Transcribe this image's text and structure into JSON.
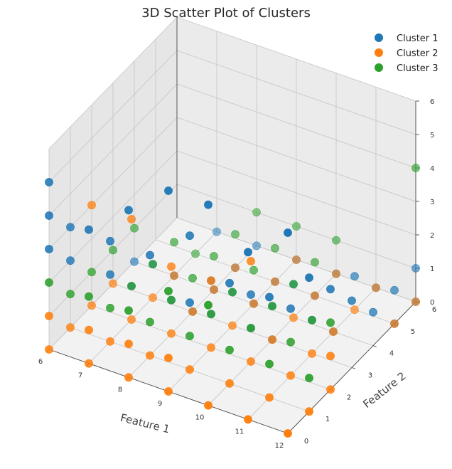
{
  "chart_data": {
    "type": "scatter",
    "projection": "3d",
    "title": "3D Scatter Plot of Clusters",
    "xlabel": "Feature 1",
    "ylabel": "Feature 2",
    "zlabel": "",
    "xlim": [
      6,
      12
    ],
    "ylim": [
      0,
      6
    ],
    "zlim": [
      0,
      6
    ],
    "x_ticks": [
      6,
      7,
      8,
      9,
      10,
      11,
      12
    ],
    "y_ticks": [
      0,
      1,
      2,
      3,
      4,
      5,
      6
    ],
    "z_ticks": [
      0,
      1,
      2,
      3,
      4,
      5,
      6
    ],
    "grid": true,
    "legend_position": "top-right",
    "series": [
      {
        "name": "Cluster 1",
        "color": "#1f77b4",
        "points": [
          [
            6,
            0,
            3
          ],
          [
            6,
            0,
            4
          ],
          [
            6,
            0,
            5
          ],
          [
            7,
            0,
            4
          ],
          [
            8,
            0,
            5
          ],
          [
            9,
            0,
            6
          ],
          [
            10,
            0,
            6
          ],
          [
            11,
            0,
            5
          ],
          [
            12,
            0,
            6
          ],
          [
            6,
            1,
            2
          ],
          [
            6,
            1,
            3
          ],
          [
            7,
            1,
            2
          ],
          [
            7,
            1,
            3
          ],
          [
            8,
            1,
            3
          ],
          [
            9,
            1,
            2
          ],
          [
            9,
            1,
            4
          ],
          [
            10,
            1,
            3
          ],
          [
            11,
            1,
            3
          ],
          [
            12,
            1,
            4
          ],
          [
            7,
            2,
            1
          ],
          [
            8,
            2,
            1
          ],
          [
            9,
            2,
            1
          ],
          [
            9,
            2,
            2
          ],
          [
            10,
            2,
            1
          ],
          [
            10,
            2,
            2
          ],
          [
            11,
            2,
            2
          ],
          [
            12,
            2,
            3
          ],
          [
            7,
            3,
            1
          ],
          [
            8,
            3,
            0
          ],
          [
            9,
            3,
            1
          ],
          [
            10,
            3,
            1
          ],
          [
            10,
            3,
            0
          ],
          [
            11,
            3,
            1
          ],
          [
            12,
            3,
            2
          ],
          [
            6,
            4,
            0
          ],
          [
            7,
            4,
            0
          ],
          [
            8,
            4,
            0
          ],
          [
            9,
            4,
            0
          ],
          [
            10,
            4,
            1
          ],
          [
            11,
            4,
            0
          ],
          [
            12,
            4,
            1
          ],
          [
            8,
            5,
            0
          ],
          [
            9,
            5,
            0
          ],
          [
            10,
            5,
            0
          ],
          [
            11,
            5,
            1
          ],
          [
            12,
            5,
            1
          ],
          [
            12,
            5,
            0
          ],
          [
            7,
            6,
            0
          ],
          [
            8,
            6,
            0
          ],
          [
            9,
            6,
            0
          ],
          [
            10,
            6,
            0
          ],
          [
            11,
            6,
            0
          ],
          [
            12,
            6,
            1
          ],
          [
            12,
            6,
            0
          ]
        ]
      },
      {
        "name": "Cluster 2",
        "color": "#ff7f0e",
        "points": [
          [
            6,
            0,
            0
          ],
          [
            6,
            0,
            1
          ],
          [
            7,
            0,
            0
          ],
          [
            7,
            0,
            1
          ],
          [
            8,
            0,
            0
          ],
          [
            8,
            0,
            1
          ],
          [
            9,
            0,
            0
          ],
          [
            9,
            0,
            1
          ],
          [
            10,
            0,
            0
          ],
          [
            11,
            0,
            0
          ],
          [
            12,
            0,
            0
          ],
          [
            6,
            1,
            0
          ],
          [
            7,
            1,
            0
          ],
          [
            8,
            1,
            0
          ],
          [
            9,
            1,
            0
          ],
          [
            10,
            1,
            0
          ],
          [
            11,
            1,
            0
          ],
          [
            12,
            1,
            0
          ],
          [
            6,
            2,
            0
          ],
          [
            7,
            2,
            0
          ],
          [
            8,
            2,
            0
          ],
          [
            9,
            2,
            0
          ],
          [
            10,
            2,
            0
          ],
          [
            11,
            2,
            0
          ],
          [
            12,
            2,
            0
          ],
          [
            6,
            3,
            0
          ],
          [
            7,
            3,
            0
          ],
          [
            8,
            3,
            0
          ],
          [
            9,
            3,
            0
          ],
          [
            10,
            3,
            0
          ],
          [
            11,
            3,
            0
          ],
          [
            7,
            4,
            0
          ],
          [
            8,
            4,
            0
          ],
          [
            9,
            4,
            0
          ],
          [
            10,
            4,
            0
          ],
          [
            11,
            4,
            0
          ],
          [
            8,
            5,
            0
          ],
          [
            9,
            5,
            0
          ],
          [
            10,
            5,
            0
          ],
          [
            11,
            5,
            0
          ],
          [
            12,
            5,
            0
          ],
          [
            9,
            6,
            0
          ],
          [
            10,
            6,
            0
          ],
          [
            11,
            6,
            0
          ],
          [
            12,
            6,
            0
          ],
          [
            6,
            2,
            3
          ],
          [
            7,
            2,
            3
          ],
          [
            8,
            2,
            2
          ],
          [
            9,
            2,
            2
          ],
          [
            10,
            2,
            3
          ],
          [
            12,
            2,
            1
          ]
        ]
      },
      {
        "name": "Cluster 3",
        "color": "#2ca02c",
        "points": [
          [
            6,
            0,
            2
          ],
          [
            7,
            0,
            2
          ],
          [
            8,
            0,
            2
          ],
          [
            9,
            0,
            3
          ],
          [
            10,
            0,
            3
          ],
          [
            6,
            1,
            1
          ],
          [
            7,
            1,
            1
          ],
          [
            8,
            1,
            1
          ],
          [
            9,
            1,
            1
          ],
          [
            10,
            1,
            1
          ],
          [
            11,
            1,
            1
          ],
          [
            12,
            1,
            1
          ],
          [
            6,
            2,
            1
          ],
          [
            7,
            2,
            1
          ],
          [
            8,
            2,
            1
          ],
          [
            9,
            2,
            1
          ],
          [
            10,
            2,
            1
          ],
          [
            11,
            2,
            1
          ],
          [
            12,
            2,
            2
          ],
          [
            6,
            3,
            1
          ],
          [
            7,
            3,
            1
          ],
          [
            8,
            3,
            1
          ],
          [
            9,
            3,
            1
          ],
          [
            10,
            3,
            1
          ],
          [
            11,
            3,
            1
          ],
          [
            6,
            4,
            1
          ],
          [
            7,
            4,
            1
          ],
          [
            8,
            4,
            1
          ],
          [
            9,
            4,
            1
          ],
          [
            10,
            4,
            1
          ],
          [
            7,
            5,
            0
          ],
          [
            8,
            5,
            1
          ],
          [
            9,
            5,
            1
          ],
          [
            10,
            5,
            1
          ],
          [
            8,
            6,
            1
          ],
          [
            9,
            6,
            1
          ],
          [
            10,
            6,
            1
          ],
          [
            12,
            6,
            4
          ]
        ]
      }
    ]
  }
}
